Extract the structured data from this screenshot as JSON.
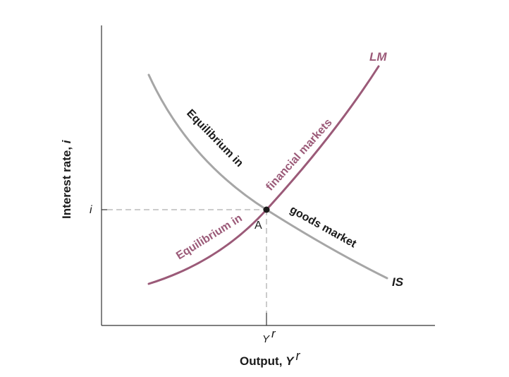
{
  "diagram": {
    "y_axis": {
      "label": "Interest rate, ",
      "label_var": "i",
      "tick": "i"
    },
    "x_axis": {
      "label": "Output, ",
      "label_var": "Y",
      "label_sup": "r",
      "tick": "Y",
      "tick_sup": "r"
    },
    "point": {
      "label": "A"
    },
    "curves": {
      "is": {
        "label": "IS",
        "color": "#a6a6a6",
        "text1": "Equilibrium in",
        "text2": "goods market",
        "text_color": "#1a1a1a"
      },
      "lm": {
        "label": "LM",
        "color": "#9b5a78",
        "text1": "Equilibrium in",
        "text2": "financial markets",
        "text_color": "#9b5a78"
      }
    }
  }
}
